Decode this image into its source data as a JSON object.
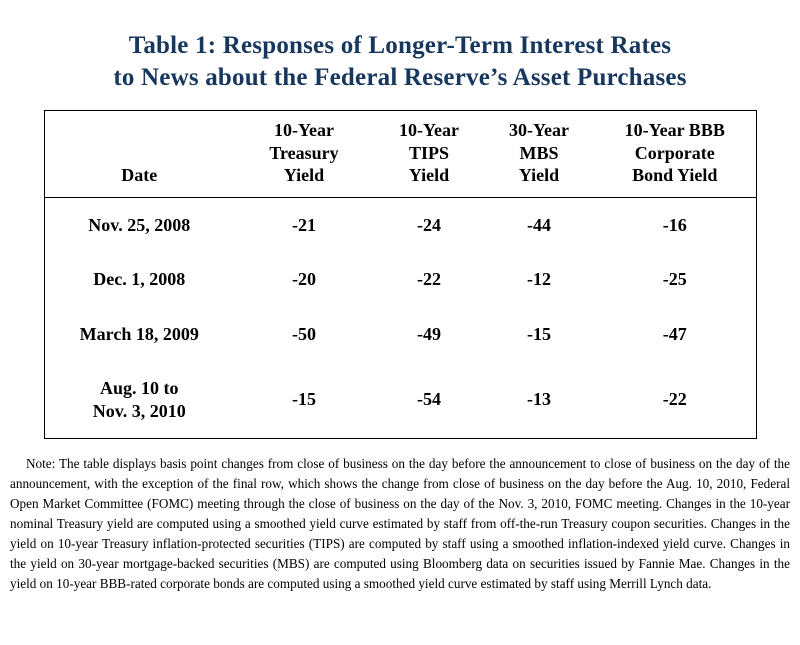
{
  "title": {
    "line1": "Table 1: Responses of Longer-Term Interest Rates",
    "line2": "to News about the Federal Reserve’s Asset Purchases"
  },
  "colors": {
    "title": "#17375E"
  },
  "table": {
    "headers": [
      "Date",
      "10-Year\nTreasury\nYield",
      "10-Year\nTIPS\nYield",
      "30-Year\nMBS\nYield",
      "10-Year BBB\nCorporate\nBond Yield"
    ],
    "rows": [
      {
        "date": "Nov. 25, 2008",
        "values": [
          "-21",
          "-24",
          "-44",
          "-16"
        ]
      },
      {
        "date": "Dec. 1, 2008",
        "values": [
          "-20",
          "-22",
          "-12",
          "-25"
        ]
      },
      {
        "date": "March 18, 2009",
        "values": [
          "-50",
          "-49",
          "-15",
          "-47"
        ]
      },
      {
        "date": "Aug. 10 to\nNov. 3, 2010",
        "values": [
          "-15",
          "-54",
          "-13",
          "-22"
        ]
      }
    ]
  },
  "note": {
    "text": "Note: The table displays basis point changes from close of business on the day before the announcement to close of business on the day of the announcement, with the exception of the final row, which shows the change from close of business on the day before the Aug. 10, 2010, Federal Open Market Committee (FOMC) meeting through the close of business on the day of the Nov. 3, 2010, FOMC meeting.  Changes in the 10-year nominal Treasury yield are computed using a smoothed yield curve estimated by staff from off-the-run Treasury coupon securities.  Changes in the yield on 10-year Treasury inflation-protected securities (TIPS) are computed by staff using a smoothed inflation-indexed yield curve.  Changes in the yield on 30-year mortgage-backed securities (MBS) are computed using Bloomberg data on securities issued by Fannie Mae.  Changes in the yield on 10-year BBB-rated corporate bonds are computed using a smoothed yield curve estimated by staff using Merrill Lynch data."
  }
}
